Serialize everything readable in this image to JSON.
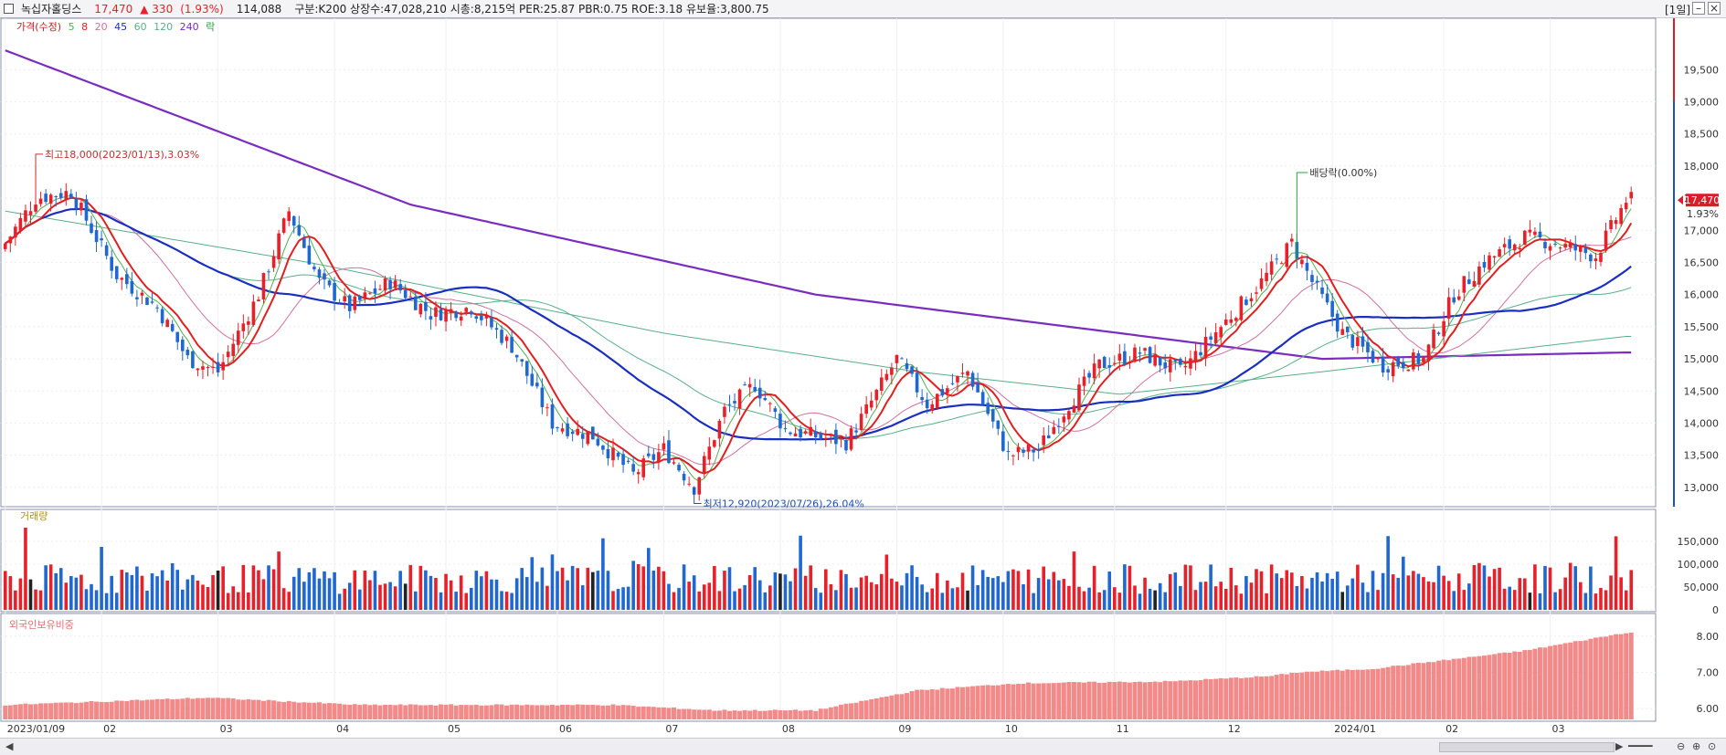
{
  "header": {
    "name": "녹십자홀딩스",
    "price": "17,470",
    "change": "▲ 330",
    "change_pct": "(1.93%)",
    "volume": "114,088",
    "info": "구분:K200  상장수:47,028,210  시총:8,215억  PER:25.87  PBR:0.75  ROE:3.18  유보율:3,800.75",
    "period": "[1일]"
  },
  "legend": {
    "price_label": "가격(수정)",
    "ma": [
      "5",
      "8",
      "20",
      "45",
      "60",
      "120",
      "240"
    ],
    "ex_label": "락",
    "volume_label": "거래량",
    "foreign_label": "외국인보유비중"
  },
  "colors": {
    "up": "#e8202a",
    "down": "#2068d0",
    "ma5": "#50b050",
    "ma8": "#e02020",
    "ma20": "#d070a0",
    "ma45": "#1a2fbf",
    "ma60": "#58b08a",
    "ma120": "#58b08a",
    "ma240": "#7a2cc0",
    "foreign_bar": "#f28a8a"
  },
  "annotations": {
    "high": "최고18,000(2023/01/13),3.03%",
    "low": "최저12,920(2023/07/26),26.04%",
    "dividend": "배당락(0.00%)",
    "last_price_tag": "17,470",
    "last_pct_tag": "1.93%"
  },
  "chart_data": {
    "type": "candlestick",
    "price_axis": {
      "ticks": [
        "19,500",
        "19,000",
        "18,500",
        "18,000",
        "17,500",
        "17,000",
        "16,500",
        "16,000",
        "15,500",
        "15,000",
        "14,500",
        "14,000",
        "13,500",
        "13,000"
      ],
      "range": [
        12700,
        20300
      ]
    },
    "volume_axis": {
      "ticks": [
        "150,000",
        "100,000",
        "50,000",
        "0"
      ],
      "range": [
        0,
        200000
      ]
    },
    "foreign_axis": {
      "ticks": [
        "8.00",
        "7.00",
        "6.00"
      ],
      "range": [
        5.7,
        8.3
      ]
    },
    "x_labels": [
      "2023/01/09",
      "02",
      "03",
      "04",
      "05",
      "06",
      "07",
      "08",
      "09",
      "10",
      "11",
      "12",
      "2024/01",
      "02",
      "03"
    ],
    "close_anchors": [
      [
        0,
        16800
      ],
      [
        6,
        17500
      ],
      [
        13,
        17600
      ],
      [
        22,
        16300
      ],
      [
        30,
        15800
      ],
      [
        36,
        15000
      ],
      [
        42,
        14800
      ],
      [
        50,
        16000
      ],
      [
        56,
        17300
      ],
      [
        62,
        16200
      ],
      [
        68,
        15800
      ],
      [
        76,
        16200
      ],
      [
        84,
        15700
      ],
      [
        92,
        15800
      ],
      [
        100,
        15200
      ],
      [
        108,
        14000
      ],
      [
        116,
        13800
      ],
      [
        124,
        13200
      ],
      [
        130,
        13600
      ],
      [
        136,
        13000
      ],
      [
        142,
        14200
      ],
      [
        148,
        14600
      ],
      [
        154,
        13900
      ],
      [
        160,
        13800
      ],
      [
        166,
        13700
      ],
      [
        170,
        14200
      ],
      [
        176,
        15000
      ],
      [
        182,
        14300
      ],
      [
        190,
        14800
      ],
      [
        198,
        13500
      ],
      [
        204,
        13600
      ],
      [
        210,
        14300
      ],
      [
        216,
        14900
      ],
      [
        224,
        15100
      ],
      [
        232,
        14800
      ],
      [
        240,
        15500
      ],
      [
        248,
        16200
      ],
      [
        254,
        16800
      ],
      [
        258,
        16200
      ],
      [
        264,
        15400
      ],
      [
        272,
        14900
      ],
      [
        280,
        15000
      ],
      [
        286,
        16000
      ],
      [
        292,
        16500
      ],
      [
        300,
        16900
      ],
      [
        306,
        16800
      ],
      [
        314,
        16600
      ],
      [
        320,
        17470
      ]
    ],
    "ma240_anchors": [
      [
        0,
        19800
      ],
      [
        80,
        17400
      ],
      [
        160,
        16000
      ],
      [
        220,
        15400
      ],
      [
        260,
        15000
      ],
      [
        320,
        15100
      ]
    ],
    "ma120_anchors": [
      [
        0,
        17300
      ],
      [
        60,
        16500
      ],
      [
        130,
        15400
      ],
      [
        180,
        14800
      ],
      [
        220,
        14450
      ],
      [
        260,
        14800
      ],
      [
        320,
        15350
      ]
    ],
    "foreign_anchors": [
      [
        0,
        6.1
      ],
      [
        40,
        6.3
      ],
      [
        70,
        6.1
      ],
      [
        120,
        6.1
      ],
      [
        140,
        5.95
      ],
      [
        160,
        5.95
      ],
      [
        180,
        6.5
      ],
      [
        200,
        6.7
      ],
      [
        230,
        6.75
      ],
      [
        250,
        6.9
      ],
      [
        255,
        7.0
      ],
      [
        270,
        7.1
      ],
      [
        300,
        7.6
      ],
      [
        320,
        8.1
      ]
    ]
  }
}
